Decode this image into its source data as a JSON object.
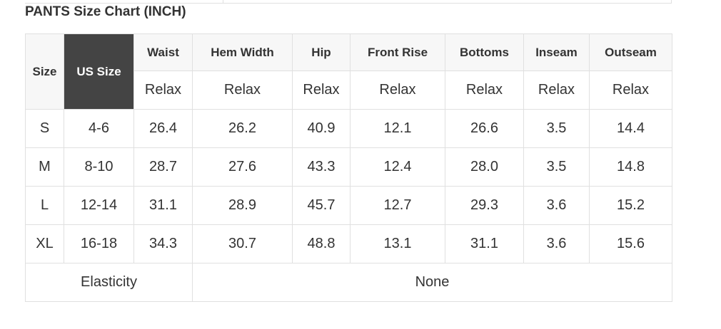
{
  "title": "PANTS Size Chart (INCH)",
  "headers": {
    "size": "Size",
    "us_size": "US Size",
    "columns": [
      "Waist",
      "Hem Width",
      "Hip",
      "Front Rise",
      "Bottoms",
      "Inseam",
      "Outseam"
    ],
    "fit": [
      "Relax",
      "Relax",
      "Relax",
      "Relax",
      "Relax",
      "Relax",
      "Relax"
    ]
  },
  "rows": [
    {
      "size": "S",
      "us": "4-6",
      "values": [
        "26.4",
        "26.2",
        "40.9",
        "12.1",
        "26.6",
        "3.5",
        "14.4"
      ]
    },
    {
      "size": "M",
      "us": "8-10",
      "values": [
        "28.7",
        "27.6",
        "43.3",
        "12.4",
        "28.0",
        "3.5",
        "14.8"
      ]
    },
    {
      "size": "L",
      "us": "12-14",
      "values": [
        "31.1",
        "28.9",
        "45.7",
        "12.7",
        "29.3",
        "3.6",
        "15.2"
      ]
    },
    {
      "size": "XL",
      "us": "16-18",
      "values": [
        "34.3",
        "30.7",
        "48.8",
        "13.1",
        "31.1",
        "3.6",
        "15.6"
      ]
    }
  ],
  "elasticity": {
    "label": "Elasticity",
    "value": "None"
  },
  "colors": {
    "header_dark": "#444444",
    "header_light": "#f7f7f7",
    "border": "#e0e0e0"
  }
}
